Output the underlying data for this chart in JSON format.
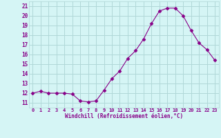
{
  "x": [
    0,
    1,
    2,
    3,
    4,
    5,
    6,
    7,
    8,
    9,
    10,
    11,
    12,
    13,
    14,
    15,
    16,
    17,
    18,
    19,
    20,
    21,
    22,
    23
  ],
  "y": [
    12.0,
    12.2,
    12.0,
    12.0,
    12.0,
    11.9,
    11.2,
    11.1,
    11.2,
    12.3,
    13.5,
    14.3,
    15.6,
    16.4,
    17.6,
    19.2,
    20.5,
    20.8,
    20.8,
    20.0,
    18.5,
    17.2,
    16.5,
    15.4
  ],
  "line_color": "#880088",
  "marker": "D",
  "marker_size": 2.5,
  "background_color": "#d5f5f5",
  "grid_color": "#b0d8d8",
  "xlabel": "Windchill (Refroidissement éolien,°C)",
  "tick_color": "#880088",
  "xlim": [
    -0.5,
    23.5
  ],
  "ylim": [
    10.5,
    21.5
  ],
  "yticks": [
    11,
    12,
    13,
    14,
    15,
    16,
    17,
    18,
    19,
    20,
    21
  ],
  "xticks": [
    0,
    1,
    2,
    3,
    4,
    5,
    6,
    7,
    8,
    9,
    10,
    11,
    12,
    13,
    14,
    15,
    16,
    17,
    18,
    19,
    20,
    21,
    22,
    23
  ]
}
